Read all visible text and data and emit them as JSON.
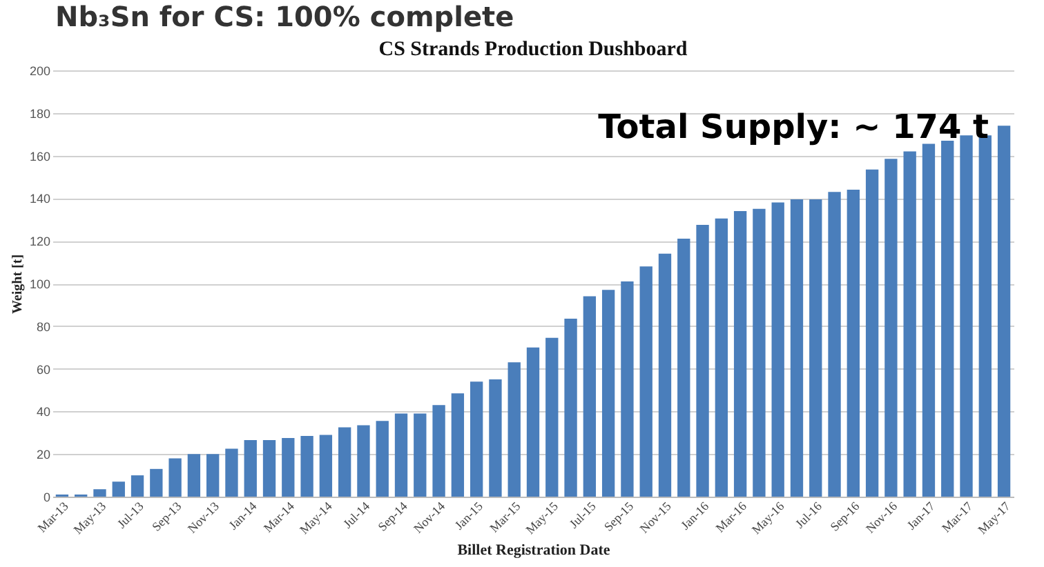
{
  "chart_data": {
    "type": "bar",
    "title": "CS Strands Production Dushboard",
    "xlabel": "Billet Registration Date",
    "ylabel": "Weight [t]",
    "annotations": [
      "Total Supply: ~ 174 t",
      "Nb₃Sn for CS: 100% complete"
    ],
    "categories": [
      "Mar-13",
      null,
      "May-13",
      null,
      "Jul-13",
      null,
      "Sep-13",
      null,
      "Nov-13",
      null,
      "Jan-14",
      null,
      "Mar-14",
      null,
      "May-14",
      null,
      "Jul-14",
      null,
      "Sep-14",
      null,
      "Nov-14",
      null,
      "Jan-15",
      null,
      "Mar-15",
      null,
      "May-15",
      null,
      "Jul-15",
      null,
      "Sep-15",
      null,
      "Nov-15",
      null,
      "Jan-16",
      null,
      "Mar-16",
      null,
      "May-16",
      null,
      "Jul-16",
      null,
      "Sep-16",
      null,
      "Nov-16",
      null,
      "Jan-17",
      null,
      "Mar-17",
      null,
      "May-17"
    ],
    "series": [
      {
        "color": "#4a7ebb",
        "values": [
          1,
          1,
          3.5,
          7,
          10,
          13,
          18,
          20,
          20,
          22.5,
          26.5,
          26.5,
          27.5,
          28.5,
          29,
          32.5,
          33.5,
          35.5,
          39,
          39,
          43,
          48.5,
          54,
          55,
          63,
          70,
          74.5,
          83.5,
          94,
          97,
          101,
          108,
          114,
          121,
          127.5,
          130.5,
          134,
          135,
          138,
          139.5,
          139.5,
          143,
          144,
          153.5,
          158.5,
          162,
          165.5,
          167,
          169.5,
          169.5,
          174
        ]
      }
    ],
    "ylim": [
      0,
      200
    ],
    "yticks": [
      0,
      20,
      40,
      60,
      80,
      100,
      120,
      140,
      160,
      180,
      200
    ],
    "grid": "y"
  }
}
